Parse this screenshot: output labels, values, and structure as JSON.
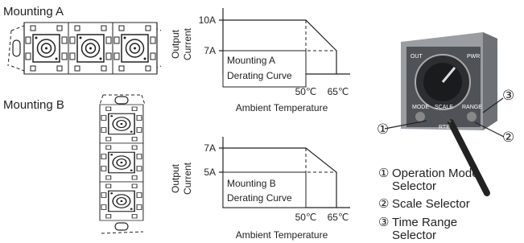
{
  "mounting_a": {
    "title": "Mounting A"
  },
  "mounting_b": {
    "title": "Mounting B"
  },
  "curve_a": {
    "y_axis_label": [
      "Output",
      "Current"
    ],
    "y_labels": [
      "10A",
      "7A"
    ],
    "x_labels": [
      "50℃",
      "65℃"
    ],
    "box_label": [
      "Mounting A",
      "Derating Curve"
    ],
    "x_axis_label": "Ambient Temperature"
  },
  "curve_b": {
    "y_axis_label": [
      "Output",
      "Current"
    ],
    "y_labels": [
      "7A",
      "5A"
    ],
    "x_labels": [
      "50℃",
      "65℃"
    ],
    "box_label": [
      "Mounting B",
      "Derating Curve"
    ],
    "x_axis_label": "Ambient Temperature"
  },
  "device": {
    "labels": [
      "OUT",
      "PWR",
      "MODE",
      "SCALE",
      "RANGE",
      "RTE"
    ],
    "callouts": [
      "①",
      "②",
      "③"
    ]
  },
  "legend": [
    {
      "marker": "①",
      "text": [
        "Operation Mode",
        "Selector"
      ]
    },
    {
      "marker": "②",
      "text": [
        "Scale Selector"
      ]
    },
    {
      "marker": "③",
      "text": [
        "Time Range",
        "Selector"
      ]
    }
  ]
}
